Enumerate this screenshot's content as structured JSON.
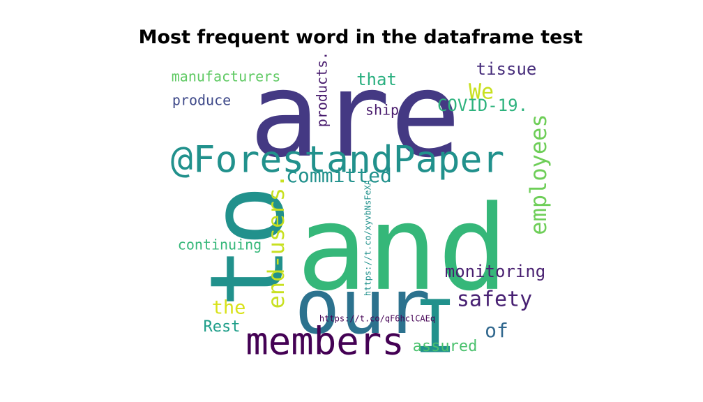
{
  "chart_data": {
    "type": "wordcloud",
    "title": "Most frequent word in the dataframe test",
    "words": [
      {
        "text": "are",
        "color": "#443983"
      },
      {
        "text": "and",
        "color": "#35b779"
      },
      {
        "text": "to",
        "color": "#21918c"
      },
      {
        "text": "our",
        "color": "#2c728e"
      },
      {
        "text": "@ForestandPaper",
        "color": "#21918c"
      },
      {
        "text": "members",
        "color": "#440154"
      },
      {
        "text": "I",
        "color": "#21918c"
      },
      {
        "text": "employees",
        "color": "#6ece58"
      },
      {
        "text": "end-users.",
        "color": "#c8e020"
      },
      {
        "text": "committed",
        "color": "#21918c"
      },
      {
        "text": "monitoring",
        "color": "#481f70"
      },
      {
        "text": "safety",
        "color": "#482173"
      },
      {
        "text": "COVID-19.",
        "color": "#2db27d"
      },
      {
        "text": "We",
        "color": "#c8e020"
      },
      {
        "text": "tissue",
        "color": "#472d7b"
      },
      {
        "text": "products.",
        "color": "#481b6d"
      },
      {
        "text": "that",
        "color": "#29af7f"
      },
      {
        "text": "manufacturers",
        "color": "#5ec962"
      },
      {
        "text": "produce",
        "color": "#3e4989"
      },
      {
        "text": "ship",
        "color": "#481a6c"
      },
      {
        "text": "continuing",
        "color": "#35b779"
      },
      {
        "text": "the",
        "color": "#d8e219"
      },
      {
        "text": "Rest",
        "color": "#1f9e89"
      },
      {
        "text": "of",
        "color": "#31688e"
      },
      {
        "text": "assured",
        "color": "#4ac16d"
      },
      {
        "text": "https://t.co/xyvbNsFeXA",
        "color": "#21918c"
      },
      {
        "text": "https://t.co/qF6hclCAEq",
        "color": "#440154"
      }
    ]
  }
}
